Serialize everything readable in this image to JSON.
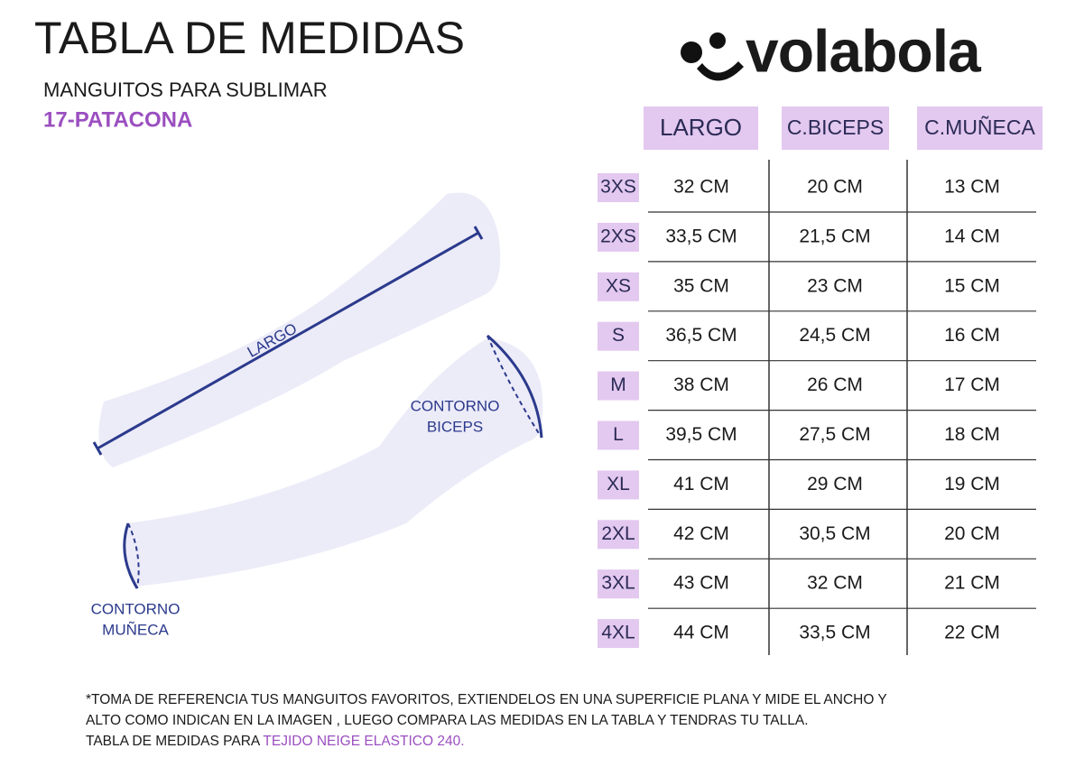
{
  "header": {
    "title": "TABLA DE MEDIDAS",
    "subtitle": "MANGUITOS PARA SUBLIMAR",
    "code": "17-PATACONA",
    "logo": "volabola"
  },
  "illustration": {
    "largo": "LARGO",
    "biceps": [
      "CONTORNO",
      "BICEPS"
    ],
    "muneca": [
      "CONTORNO",
      "MUÑECA"
    ]
  },
  "table": {
    "columns": [
      "LARGO",
      "C.BICEPS",
      "C.MUÑECA"
    ],
    "rows": [
      [
        "3XS",
        "32 CM",
        "20 CM",
        "13 CM"
      ],
      [
        "2XS",
        "33,5 CM",
        "21,5 CM",
        "14 CM"
      ],
      [
        "XS",
        "35 CM",
        "23 CM",
        "15 CM"
      ],
      [
        "S",
        "36,5 CM",
        "24,5 CM",
        "16 CM"
      ],
      [
        "M",
        "38 CM",
        "26 CM",
        "17 CM"
      ],
      [
        "L",
        "39,5 CM",
        "27,5 CM",
        "18 CM"
      ],
      [
        "XL",
        "41 CM",
        "29 CM",
        "19 CM"
      ],
      [
        "2XL",
        "42 CM",
        "30,5 CM",
        "20 CM"
      ],
      [
        "3XL",
        "43 CM",
        "32 CM",
        "21 CM"
      ],
      [
        "4XL",
        "44 CM",
        "33,5 CM",
        "22 CM"
      ]
    ]
  },
  "footer": {
    "lines": [
      "*TOMA DE REFERENCIA TUS MANGUITOS FAVORITOS, EXTIENDELOS EN UNA SUPERFICIE PLANA Y MIDE EL ANCHO Y",
      "ALTO COMO INDICAN EN LA IMAGEN , LUEGO COMPARA LAS MEDIDAS  EN LA TABLA Y TENDRAS TU TALLA."
    ],
    "line3": "TABLA DE MEDIDAS PARA ",
    "highlight": "TEJIDO NEIGE ELASTICO 240."
  }
}
